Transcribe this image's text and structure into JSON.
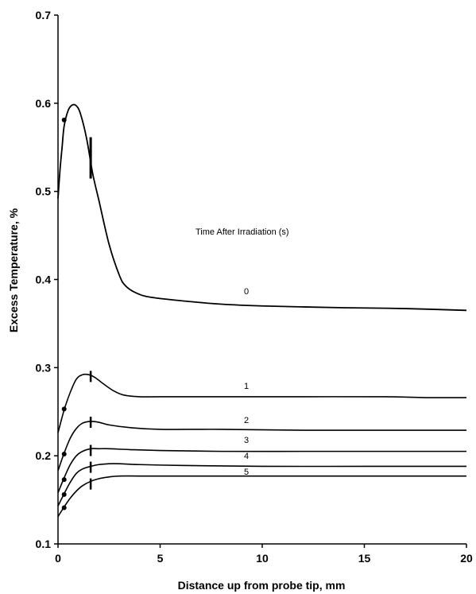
{
  "chart_data": {
    "type": "line",
    "xlabel": "Distance up from probe tip, mm",
    "ylabel": "Excess Temperature, %",
    "xlim": [
      0,
      20
    ],
    "ylim": [
      0.1,
      0.7
    ],
    "xticks": [
      0,
      5,
      10,
      15,
      20
    ],
    "xtick_labels": [
      "0",
      "5",
      "10",
      "15",
      "20"
    ],
    "yticks": [
      0.1,
      0.2,
      0.3,
      0.4,
      0.5,
      0.6,
      0.7
    ],
    "ytick_labels": [
      "0.1",
      "0.2",
      "0.3",
      "0.4",
      "0.5",
      "0.6",
      "0.7"
    ],
    "grid": false,
    "annotation": "Time After Irradiation (s)",
    "series": [
      {
        "name": "0",
        "x": [
          0.0,
          0.1,
          0.2,
          0.3,
          0.5,
          0.7,
          0.9,
          1.1,
          1.4,
          1.7,
          2.0,
          2.5,
          3.0,
          3.3,
          3.8,
          4.5,
          6,
          8,
          10,
          14,
          17,
          20
        ],
        "y": [
          0.492,
          0.525,
          0.55,
          0.574,
          0.592,
          0.598,
          0.597,
          0.588,
          0.56,
          0.52,
          0.49,
          0.44,
          0.405,
          0.393,
          0.385,
          0.38,
          0.376,
          0.372,
          0.37,
          0.368,
          0.367,
          0.365
        ],
        "point": [
          0.3,
          0.581
        ],
        "bar": [
          1.6,
          0.538
        ]
      },
      {
        "name": "1",
        "x": [
          0.0,
          0.3,
          0.6,
          0.9,
          1.2,
          1.5,
          1.8,
          2.2,
          2.7,
          3.2,
          4,
          5,
          8,
          12,
          16,
          18,
          20
        ],
        "y": [
          0.226,
          0.252,
          0.272,
          0.287,
          0.292,
          0.292,
          0.289,
          0.282,
          0.274,
          0.269,
          0.267,
          0.267,
          0.267,
          0.267,
          0.267,
          0.266,
          0.266
        ],
        "point": [
          0.3,
          0.253
        ],
        "bar": [
          1.6,
          0.29
        ]
      },
      {
        "name": "2",
        "x": [
          0.0,
          0.3,
          0.6,
          0.9,
          1.2,
          1.6,
          2.0,
          2.5,
          3.5,
          5,
          8,
          12,
          16,
          20
        ],
        "y": [
          0.183,
          0.203,
          0.22,
          0.231,
          0.237,
          0.239,
          0.238,
          0.235,
          0.232,
          0.23,
          0.23,
          0.229,
          0.229,
          0.229
        ],
        "point": [
          0.3,
          0.202
        ],
        "bar": [
          1.6,
          0.238
        ]
      },
      {
        "name": "3",
        "x": [
          0.0,
          0.3,
          0.6,
          0.9,
          1.2,
          1.6,
          2.0,
          2.5,
          3.5,
          5,
          8,
          12,
          16,
          20
        ],
        "y": [
          0.158,
          0.175,
          0.19,
          0.2,
          0.205,
          0.208,
          0.208,
          0.208,
          0.207,
          0.206,
          0.205,
          0.205,
          0.205,
          0.205
        ],
        "point": [
          0.3,
          0.173
        ],
        "bar": [
          1.6,
          0.206
        ]
      },
      {
        "name": "4",
        "x": [
          0.0,
          0.3,
          0.6,
          0.9,
          1.2,
          1.6,
          2.0,
          2.5,
          3.0,
          4,
          6,
          10,
          15,
          20
        ],
        "y": [
          0.143,
          0.157,
          0.17,
          0.18,
          0.185,
          0.188,
          0.19,
          0.191,
          0.191,
          0.19,
          0.189,
          0.188,
          0.188,
          0.188
        ],
        "point": [
          0.3,
          0.156
        ],
        "bar": [
          1.6,
          0.187
        ]
      },
      {
        "name": "5",
        "x": [
          0.0,
          0.3,
          0.6,
          0.9,
          1.2,
          1.6,
          2.0,
          2.5,
          3.0,
          4,
          6,
          10,
          15,
          20
        ],
        "y": [
          0.131,
          0.142,
          0.152,
          0.16,
          0.166,
          0.171,
          0.174,
          0.176,
          0.177,
          0.177,
          0.177,
          0.177,
          0.177,
          0.177
        ],
        "point": [
          0.3,
          0.141
        ],
        "bar": [
          1.6,
          0.168
        ]
      }
    ]
  }
}
